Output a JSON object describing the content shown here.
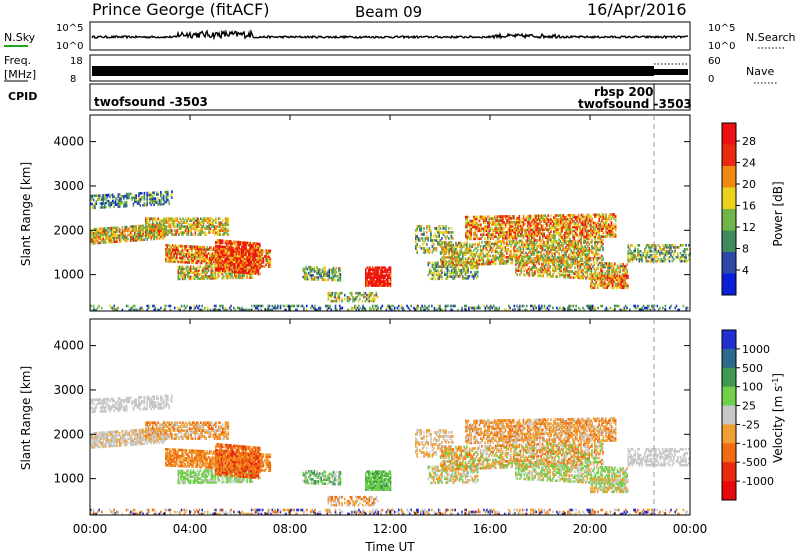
{
  "header": {
    "station": "Prince George (fitACF)",
    "beam": "Beam 09",
    "date": "16/Apr/2016"
  },
  "noise_panel": {
    "left_label": "N.Sky",
    "left_ticks": [
      "10^5",
      "10^0"
    ],
    "right_label": "N.Search",
    "right_ticks": [
      "10^5",
      "10^0"
    ]
  },
  "freq_panel": {
    "left_label_1": "Freq.",
    "left_label_2": "[MHz]",
    "left_ticks": [
      "18",
      "8"
    ],
    "right_label": "Nave",
    "right_ticks": [
      "60",
      "0"
    ]
  },
  "cpid_panel": {
    "label": "CPID",
    "program_left": "twofsound -3503",
    "program_right_top": "rbsp 200",
    "program_right_bottom": "twofsound -3503"
  },
  "chart_data": [
    {
      "type": "heatmap",
      "name": "power",
      "ylabel": "Slant Range [km]",
      "yticks": [
        "1000",
        "2000",
        "3000",
        "4000"
      ],
      "ylim": [
        180,
        4600
      ],
      "colorbar": {
        "label": "Power [dB]",
        "ticks": [
          "4",
          "8",
          "12",
          "16",
          "20",
          "24",
          "28"
        ],
        "colors": [
          "#0a1fd8",
          "#2b49a8",
          "#3f8a5e",
          "#6fb54a",
          "#e8d21c",
          "#f08a12",
          "#e82a10",
          "#f01010"
        ]
      }
    },
    {
      "type": "heatmap",
      "name": "velocity",
      "ylabel": "Slant Range [km]",
      "yticks": [
        "1000",
        "2000",
        "3000",
        "4000"
      ],
      "ylim": [
        180,
        4600
      ],
      "colorbar": {
        "label": "Velocity [m s^-1]",
        "ticks": [
          "1000",
          "500",
          "100",
          "25",
          "-25",
          "-100",
          "-500",
          "-1000"
        ],
        "colors": [
          "#1f2fd0",
          "#2c6a8a",
          "#3f9a50",
          "#6fd04a",
          "#c8c8c8",
          "#f0a030",
          "#f06c10",
          "#e82a10",
          "#e80808"
        ]
      }
    }
  ],
  "x_axis": {
    "label": "Time UT",
    "ticks": [
      "00:00",
      "04:00",
      "08:00",
      "12:00",
      "16:00",
      "20:00",
      "00:00"
    ]
  }
}
